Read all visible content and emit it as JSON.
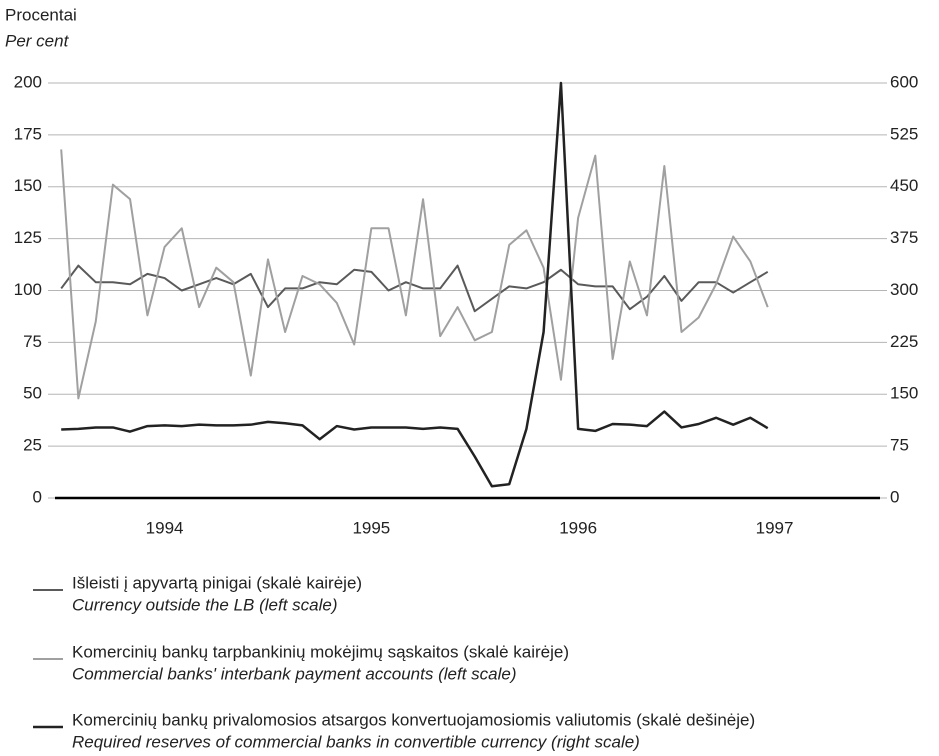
{
  "chart_data": {
    "type": "line",
    "ylabel": "Procentai",
    "ylabel_en": "Per cent",
    "x": [
      1994,
      1994.083,
      1994.167,
      1994.25,
      1994.333,
      1994.417,
      1994.5,
      1994.583,
      1994.667,
      1994.75,
      1994.833,
      1994.917,
      1995,
      1995.083,
      1995.167,
      1995.25,
      1995.333,
      1995.417,
      1995.5,
      1995.583,
      1995.667,
      1995.75,
      1995.833,
      1995.917,
      1996,
      1996.083,
      1996.167,
      1996.25,
      1996.333,
      1996.417,
      1996.5,
      1996.583,
      1996.667,
      1996.75,
      1996.833,
      1996.917,
      1997,
      1997.083,
      1997.167,
      1997.25,
      1997.333,
      1997.417
    ],
    "xlim": [
      1993.97,
      1997.96
    ],
    "xticks": [
      {
        "value": 1994.5,
        "label": "1994"
      },
      {
        "value": 1995.5,
        "label": "1995"
      },
      {
        "value": 1996.5,
        "label": "1996"
      },
      {
        "value": 1997.45,
        "label": "1997"
      }
    ],
    "ylim": [
      0,
      200
    ],
    "yticks": [
      0,
      25,
      50,
      75,
      100,
      125,
      150,
      175,
      200
    ],
    "y2lim": [
      0,
      600
    ],
    "y2ticks": [
      0,
      75,
      150,
      225,
      300,
      375,
      450,
      525,
      600
    ],
    "grid": true,
    "series": [
      {
        "name": "Išleisti į apyvartą pinigai (skalė kairėje)",
        "name_en": "Currency outside the LB (left scale)",
        "color": "#5a5a5a",
        "axis": "y",
        "values": [
          101,
          112,
          104,
          104,
          103,
          108,
          106,
          100,
          103,
          106,
          103,
          108,
          92,
          101,
          101,
          104,
          103,
          110,
          109,
          100,
          104,
          101,
          101,
          112,
          90,
          96,
          102,
          101,
          104,
          110,
          103,
          102,
          102,
          91,
          97,
          107,
          95,
          104,
          104,
          99,
          104,
          109
        ]
      },
      {
        "name": "Komercinių bankų tarpbankinių mokėjimų sąskaitos (skalė kairėje)",
        "name_en": "Commercial banks' interbank payment accounts (left scale)",
        "color": "#a0a0a0",
        "axis": "y",
        "values": [
          168,
          48,
          85,
          151,
          144,
          88,
          121,
          130,
          92,
          111,
          104,
          59,
          115,
          80,
          107,
          103,
          94,
          74,
          130,
          130,
          88,
          144,
          78,
          92,
          76,
          80,
          122,
          129,
          111,
          57,
          135,
          165,
          67,
          114,
          88,
          160,
          80,
          87,
          103,
          126,
          114,
          92
        ]
      },
      {
        "name": "Komercinių bankų privalomosios atsargos konvertuojamosiomis valiutomis (skalė dešinėje)",
        "name_en": "Required reserves of commercial banks in convertible currency (right scale)",
        "color": "#222222",
        "axis": "y2",
        "values": [
          99,
          100,
          102,
          102,
          96,
          104,
          105,
          104,
          106,
          105,
          105,
          106,
          110,
          108,
          105,
          85,
          104,
          99,
          102,
          102,
          102,
          100,
          102,
          100,
          60,
          17,
          20,
          100,
          240,
          600,
          100,
          97,
          107,
          106,
          104,
          125,
          102,
          107,
          116,
          106,
          116,
          101
        ]
      }
    ]
  }
}
